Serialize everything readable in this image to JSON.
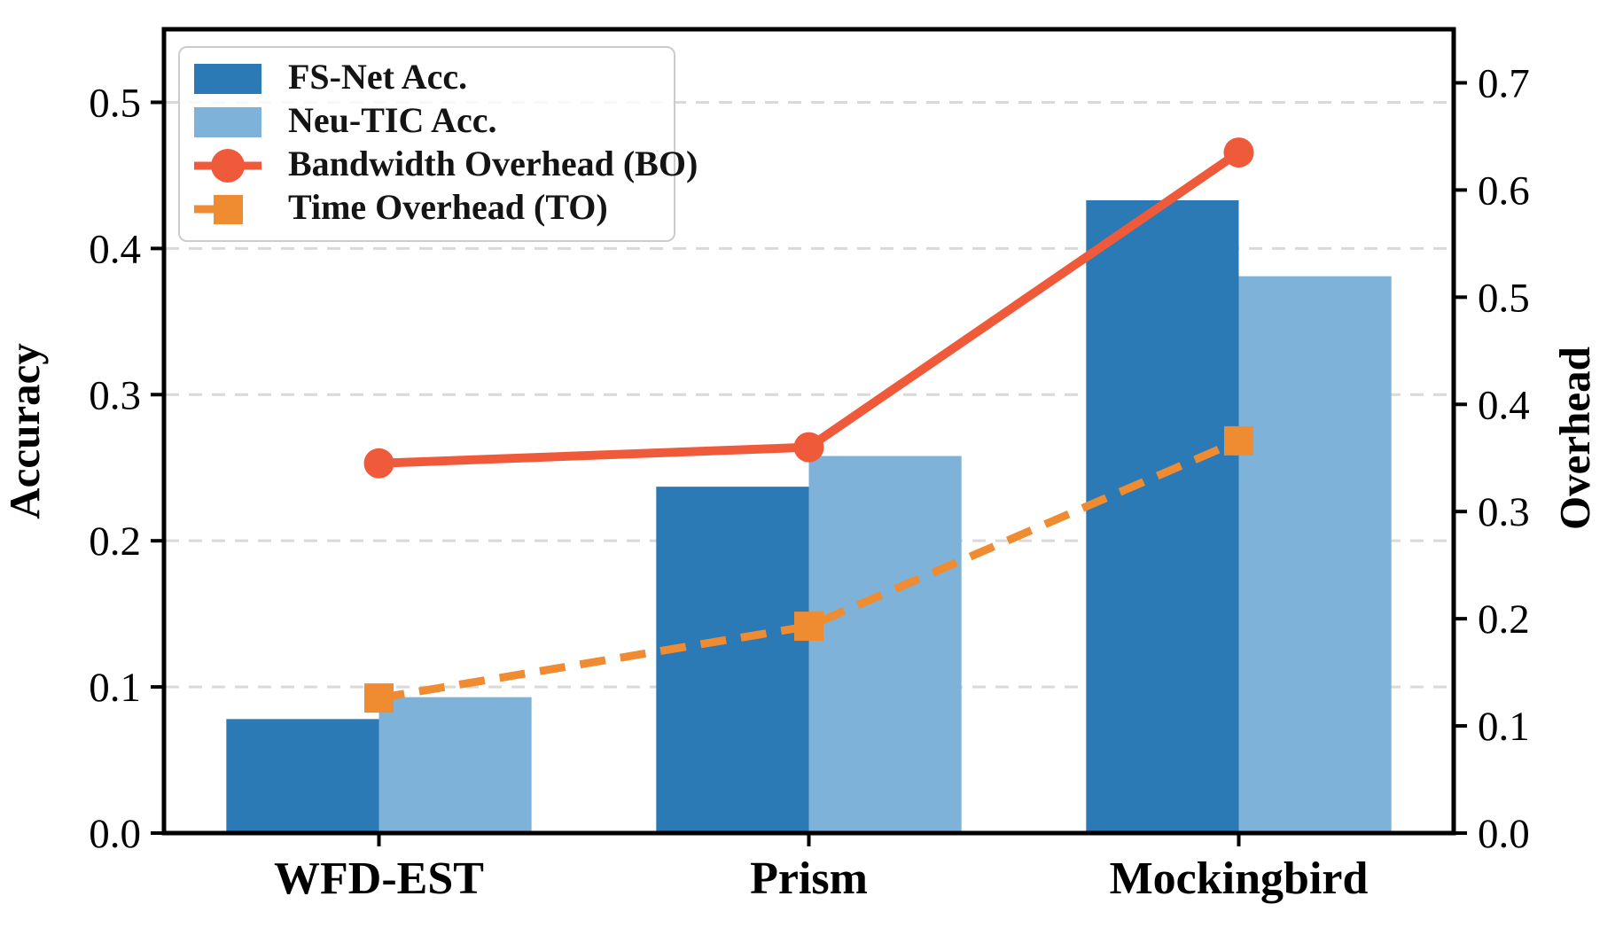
{
  "chart_data": {
    "type": "combo",
    "title": "",
    "categories": [
      "WFD-EST",
      "Prism",
      "Mockingbird"
    ],
    "bar_series": [
      {
        "name": "FS-Net Acc.",
        "axis": "left",
        "color": "#2b79b5",
        "values": [
          0.078,
          0.237,
          0.433
        ]
      },
      {
        "name": "Neu-TIC Acc.",
        "axis": "left",
        "color": "#7fb2d8",
        "values": [
          0.093,
          0.258,
          0.381
        ]
      }
    ],
    "line_series": [
      {
        "name": "Bandwidth Overhead (BO)",
        "axis": "right",
        "color": "#ef5a3b",
        "style": "solid",
        "marker": "circle",
        "values": [
          0.345,
          0.36,
          0.635
        ]
      },
      {
        "name": "Time Overhead (TO)",
        "axis": "right",
        "color": "#ef8b31",
        "style": "dashed",
        "marker": "square",
        "values": [
          0.126,
          0.193,
          0.366
        ]
      }
    ],
    "left_axis": {
      "label": "Accuracy",
      "ticks": [
        0.0,
        0.1,
        0.2,
        0.3,
        0.4,
        0.5
      ],
      "lim": [
        0,
        0.55
      ]
    },
    "right_axis": {
      "label": "Overhead",
      "ticks": [
        0.0,
        0.1,
        0.2,
        0.3,
        0.4,
        0.5,
        0.6,
        0.7
      ],
      "lim": [
        0,
        0.75
      ]
    },
    "grid": {
      "show": true,
      "color": "#d9d9d9",
      "style": "dashed",
      "on_ticks": "left"
    },
    "legend": {
      "position": "upper-left",
      "border_color": "#cccccc"
    },
    "bar_width_fraction": 0.355,
    "text_color": "#000000",
    "spine_color": "#000000"
  }
}
